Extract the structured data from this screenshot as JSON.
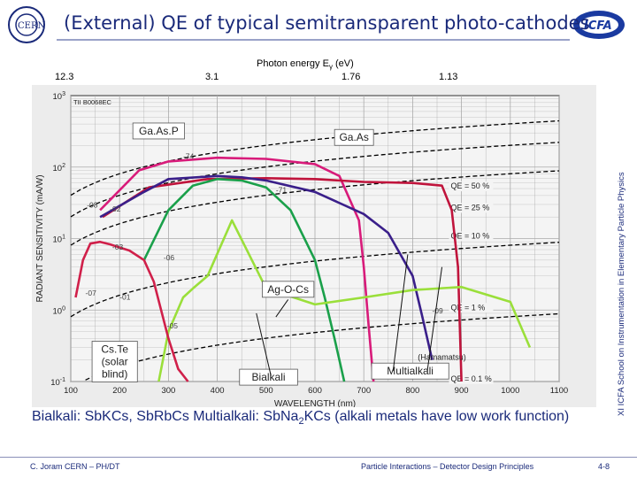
{
  "header": {
    "title": "(External) QE of typical semitransparent photo-cathodes"
  },
  "energy_axis": {
    "title_prefix": "Photon energy E",
    "title_sub": "γ",
    "title_suffix": " (eV)",
    "ticks": [
      "12.3",
      "3.1",
      "1.76",
      "1.13"
    ]
  },
  "side_note": "XI ICFA School on Instrumentation in Elementary Particle Physics",
  "caption": {
    "part1": "Bialkali: Sb",
    "part2": "KCs, Sb",
    "part3": "Rb",
    "part4": "Cs  Multialkali: Sb",
    "part5": "Na",
    "sub5": "2",
    "part6": "KCs (alkali metals have low work function)"
  },
  "footer": {
    "author": "C. Joram   CERN – PH/DT",
    "lecture": "Particle Interactions – Detector Design Principles",
    "page": "4-8"
  },
  "colors": {
    "title": "#1a2a7a",
    "gaasp": "#d81b7a",
    "gaas": "#c0143c",
    "multialkali": "#3a1f8a",
    "bialkali": "#1aa04a",
    "agocs": "#9adf3a",
    "cste": "#d0204a",
    "qe_lines": "#000000"
  },
  "chart_data": {
    "type": "line",
    "corner_label": "TII B0068EC",
    "xlabel": "WAVELENGTH (nm)",
    "ylabel": "RADIANT SENSITIVITY (mA/W)",
    "xlim": [
      100,
      1100
    ],
    "ylim": [
      0.1,
      100
    ],
    "y_scale": "log",
    "x_ticks": [
      100,
      200,
      300,
      400,
      500,
      600,
      700,
      800,
      900,
      1000,
      1100
    ],
    "y_ticks": [
      {
        "v": 0.1,
        "b": "10",
        "e": "-1"
      },
      {
        "v": 1,
        "b": "10",
        "e": "0"
      },
      {
        "v": 10,
        "b": "10",
        "e": "1"
      },
      {
        "v": 100,
        "b": "10",
        "e": "2"
      },
      {
        "v": 1000,
        "b": "10",
        "e": "3"
      }
    ],
    "grid": true,
    "source_note": "(Hamamatsu)",
    "qe_lines": [
      {
        "name": "QE = 50 %",
        "qe": 0.5
      },
      {
        "name": "QE = 25 %",
        "qe": 0.25
      },
      {
        "name": "QE = 10 %",
        "qe": 0.1
      },
      {
        "name": "QE = 1 %",
        "qe": 0.01
      },
      {
        "name": "QE = 0.1 %",
        "qe": 0.001
      }
    ],
    "series": [
      {
        "name": "Ga.As.P",
        "key": "gaasp",
        "x": [
          160,
          240,
          300,
          400,
          500,
          600,
          650,
          690,
          700,
          710,
          720
        ],
        "y": [
          25,
          90,
          120,
          135,
          130,
          110,
          75,
          18,
          4,
          0.6,
          0.1
        ]
      },
      {
        "name": "Ga.As",
        "key": "gaas",
        "x": [
          165,
          260,
          380,
          500,
          600,
          700,
          800,
          860,
          880,
          893,
          900
        ],
        "y": [
          20,
          52,
          68,
          70,
          68,
          62,
          60,
          55,
          25,
          4,
          0.1
        ]
      },
      {
        "name": "Multialkali",
        "key": "multialkali",
        "x": [
          160,
          250,
          300,
          400,
          450,
          500,
          600,
          700,
          750,
          800,
          820,
          840
        ],
        "y": [
          20,
          45,
          68,
          75,
          72,
          65,
          45,
          22,
          12,
          3,
          0.8,
          0.2
        ]
      },
      {
        "name": "Bialkali",
        "key": "bialkali",
        "x": [
          250,
          300,
          350,
          400,
          450,
          500,
          550,
          600,
          620,
          640,
          660
        ],
        "y": [
          5,
          25,
          55,
          68,
          65,
          52,
          25,
          5,
          1.5,
          0.4,
          0.1
        ]
      },
      {
        "name": "Ag-O-Cs",
        "key": "agocs",
        "x": [
          280,
          300,
          330,
          350,
          380,
          430,
          500,
          600,
          700,
          800,
          900,
          1000,
          1040
        ],
        "y": [
          0.1,
          0.5,
          1.5,
          2,
          3,
          18,
          2,
          1.2,
          1.5,
          1.9,
          2.1,
          1.3,
          0.3
        ]
      },
      {
        "name": "Cs-Te (solar blind)",
        "key": "cste",
        "x": [
          110,
          125,
          140,
          160,
          180,
          200,
          220,
          250,
          270,
          285,
          300,
          320,
          340
        ],
        "y": [
          1.5,
          5,
          8.5,
          9,
          8.3,
          7.5,
          6.8,
          5,
          2.5,
          1,
          0.4,
          0.15,
          0.1
        ]
      }
    ],
    "annotations": [
      {
        "text": "Ga.As.P",
        "boxed": true
      },
      {
        "text": "Ga.As",
        "boxed": true
      },
      {
        "text": "Ag-O-Cs",
        "boxed": true
      },
      {
        "text": "Cs.Te\n(solar\nblind)",
        "boxed": true
      },
      {
        "text": "Bialkali",
        "boxed": true
      },
      {
        "text": "Multialkali",
        "boxed": true
      }
    ],
    "curve_codes": [
      "-74",
      "-71",
      "-08",
      "-02",
      "-03",
      "-06",
      "-07",
      "-01",
      "-09",
      "-05"
    ]
  }
}
